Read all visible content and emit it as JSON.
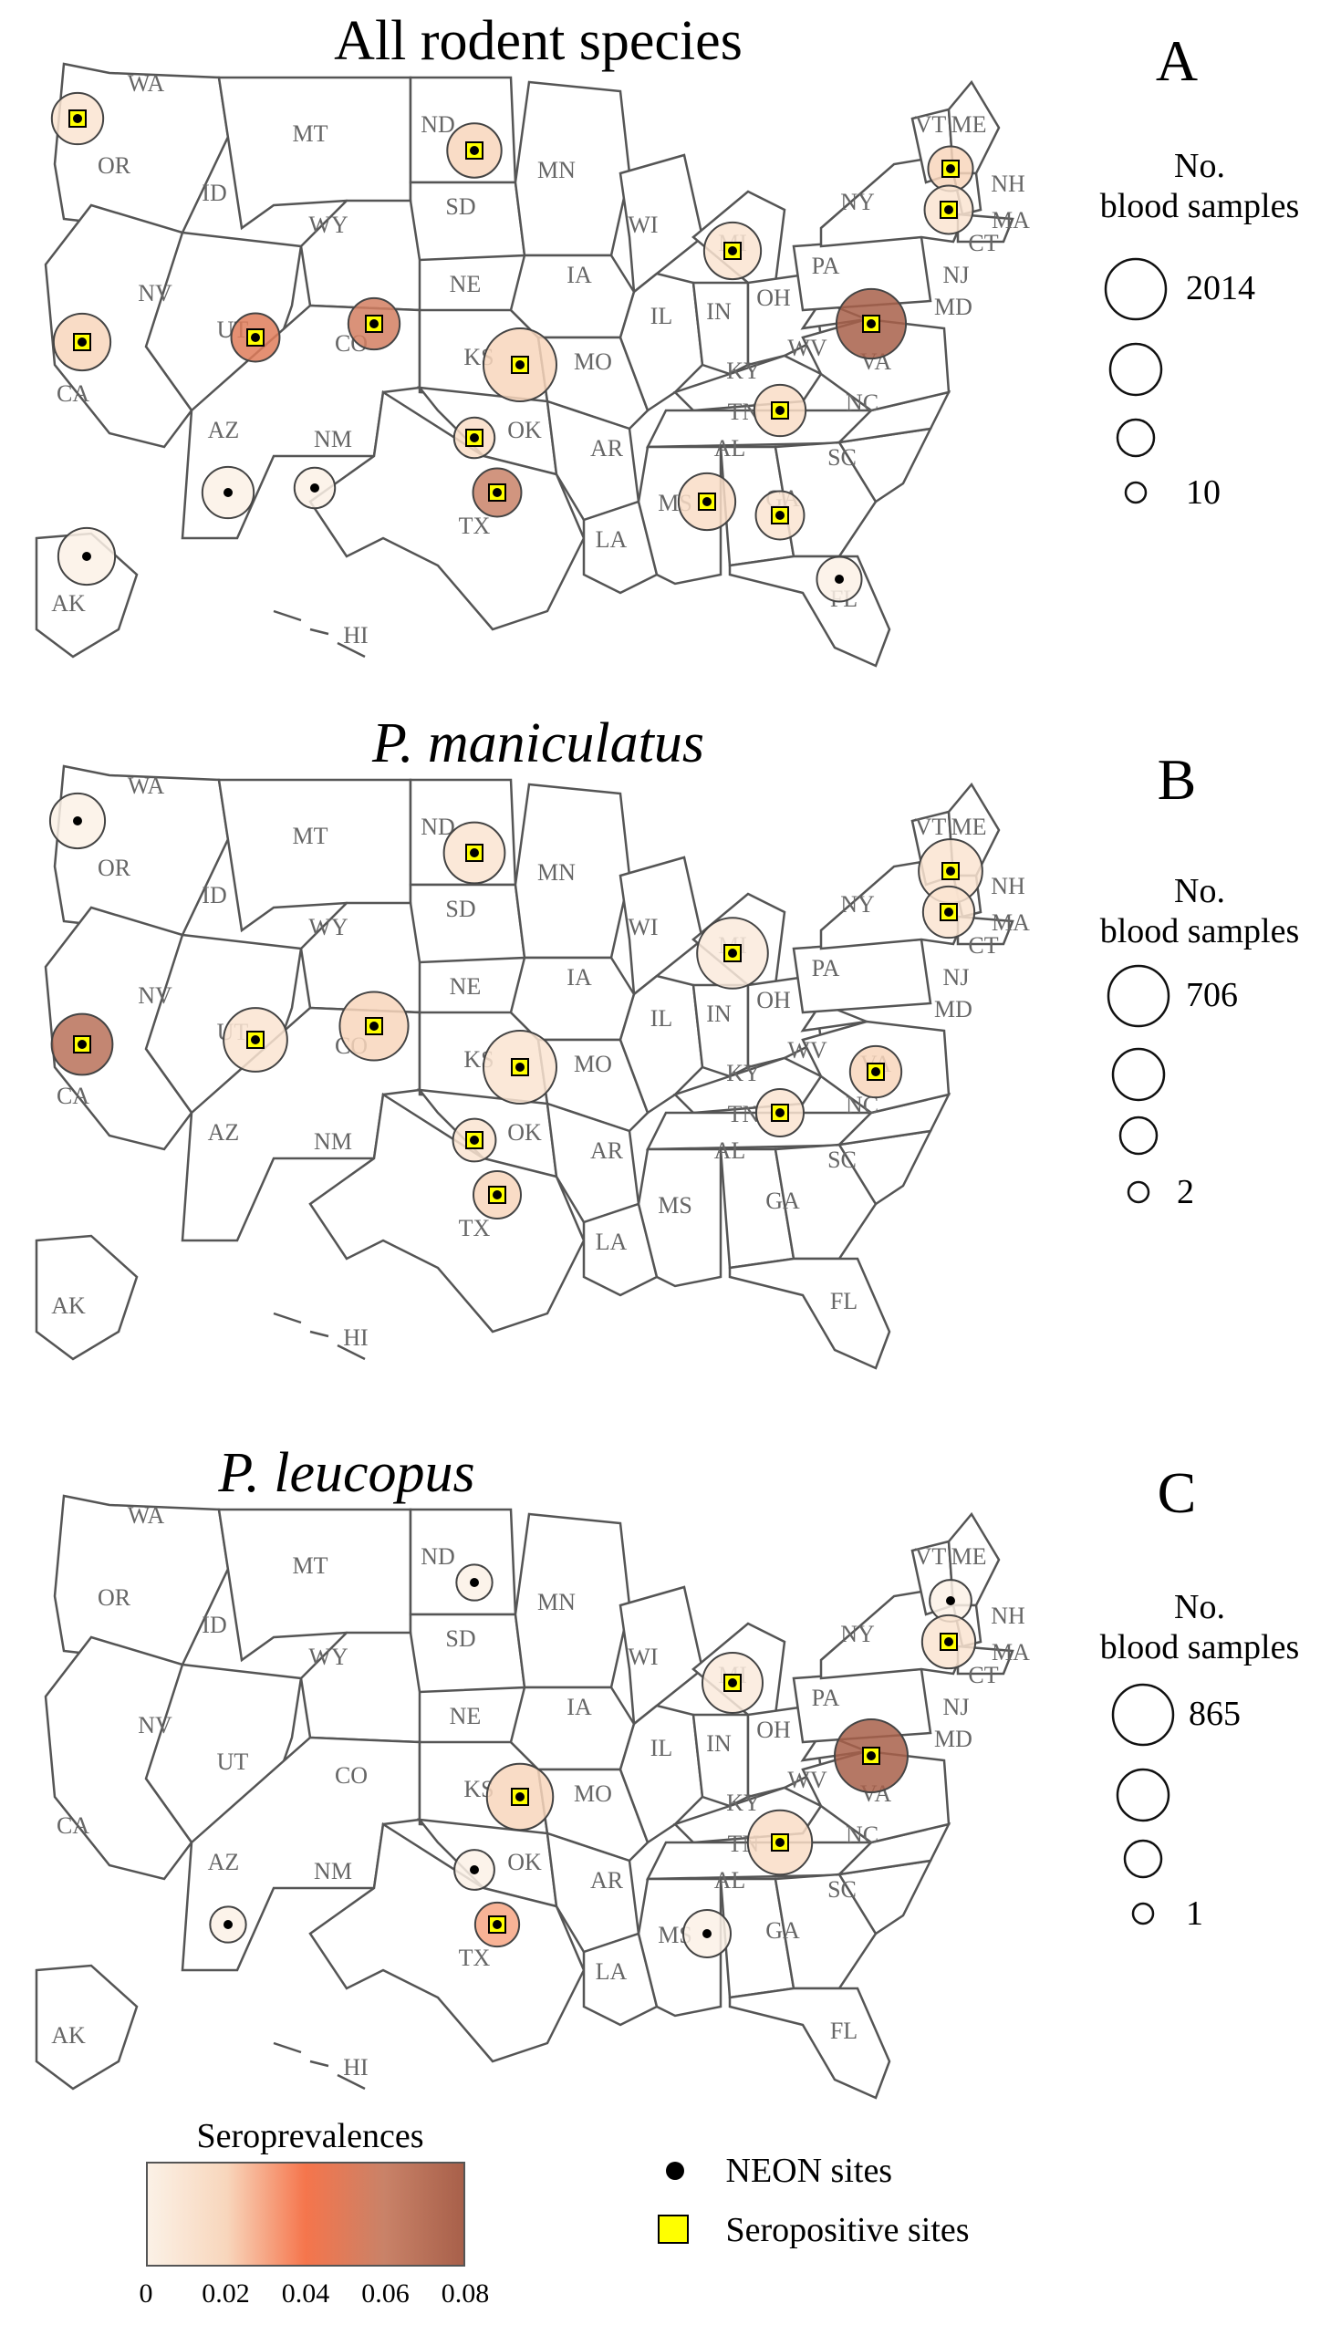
{
  "panels": [
    {
      "id": "A",
      "title": "All rodent species",
      "italic": false,
      "letter": "A",
      "legend_heading_1": "No.",
      "legend_heading_2": "blood samples",
      "legend_max": "2014",
      "legend_min": "10",
      "circles": [
        {
          "state": "WA",
          "samples": 500,
          "prev": 0.01
        },
        {
          "state": "ND",
          "samples": 600,
          "prev": 0.02
        },
        {
          "state": "MI",
          "samples": 700,
          "prev": 0.01
        },
        {
          "state": "ME",
          "samples": 300,
          "prev": 0.02
        },
        {
          "state": "NH",
          "samples": 400,
          "prev": 0.01
        },
        {
          "state": "CA",
          "samples": 700,
          "prev": 0.02
        },
        {
          "state": "UT",
          "samples": 400,
          "prev": 0.05
        },
        {
          "state": "CO",
          "samples": 500,
          "prev": 0.055
        },
        {
          "state": "KS",
          "samples": 1500,
          "prev": 0.02
        },
        {
          "state": "PA",
          "samples": 1300,
          "prev": 0.08
        },
        {
          "state": "TN",
          "samples": 500,
          "prev": 0.015
        },
        {
          "state": "OK",
          "samples": 200,
          "prev": 0.015
        },
        {
          "state": "TX",
          "samples": 400,
          "prev": 0.06
        },
        {
          "state": "AL",
          "samples": 700,
          "prev": 0.015
        },
        {
          "state": "GA",
          "samples": 400,
          "prev": 0.01
        },
        {
          "state": "AZ",
          "samples": 500,
          "prev": 0.0
        },
        {
          "state": "NM",
          "samples": 200,
          "prev": 0.0
        },
        {
          "state": "AK",
          "samples": 700,
          "prev": 0.0
        },
        {
          "state": "FL",
          "samples": 300,
          "prev": 0.0
        }
      ]
    },
    {
      "id": "B",
      "title": "P. maniculatus",
      "italic": true,
      "letter": "B",
      "legend_heading_1": "No.",
      "legend_heading_2": "blood samples",
      "legend_max": "706",
      "legend_min": "2",
      "circles": [
        {
          "state": "WA",
          "samples": 250,
          "prev": 0.0
        },
        {
          "state": "ND",
          "samples": 350,
          "prev": 0.01
        },
        {
          "state": "MI",
          "samples": 550,
          "prev": 0.005
        },
        {
          "state": "ME",
          "samples": 400,
          "prev": 0.01
        },
        {
          "state": "NH",
          "samples": 200,
          "prev": 0.01
        },
        {
          "state": "CA",
          "samples": 350,
          "prev": 0.07
        },
        {
          "state": "UT",
          "samples": 400,
          "prev": 0.01
        },
        {
          "state": "CO",
          "samples": 500,
          "prev": 0.02
        },
        {
          "state": "KS",
          "samples": 600,
          "prev": 0.01
        },
        {
          "state": "VA",
          "samples": 200,
          "prev": 0.02
        },
        {
          "state": "TN",
          "samples": 150,
          "prev": 0.01
        },
        {
          "state": "OK",
          "samples": 100,
          "prev": 0.01
        },
        {
          "state": "TX",
          "samples": 150,
          "prev": 0.02
        }
      ]
    },
    {
      "id": "C",
      "title": "P. leucopus",
      "italic": true,
      "letter": "C",
      "legend_heading_1": "No.",
      "legend_heading_2": "blood samples",
      "legend_max": "865",
      "legend_min": "1",
      "circles": [
        {
          "state": "ND",
          "samples": 60,
          "prev": 0.0
        },
        {
          "state": "MI",
          "samples": 450,
          "prev": 0.005
        },
        {
          "state": "ME",
          "samples": 120,
          "prev": 0.0
        },
        {
          "state": "NH",
          "samples": 300,
          "prev": 0.01
        },
        {
          "state": "KS",
          "samples": 600,
          "prev": 0.02
        },
        {
          "state": "PA",
          "samples": 800,
          "prev": 0.08
        },
        {
          "state": "TN",
          "samples": 550,
          "prev": 0.015
        },
        {
          "state": "OK",
          "samples": 100,
          "prev": 0.0
        },
        {
          "state": "TX",
          "samples": 150,
          "prev": 0.03
        },
        {
          "state": "AL",
          "samples": 200,
          "prev": 0.0
        },
        {
          "state": "AZ",
          "samples": 60,
          "prev": 0.0
        }
      ]
    }
  ],
  "state_labels": [
    "WA",
    "OR",
    "CA",
    "NV",
    "ID",
    "MT",
    "WY",
    "UT",
    "AZ",
    "NM",
    "CO",
    "ND",
    "SD",
    "NE",
    "KS",
    "OK",
    "TX",
    "MN",
    "IA",
    "MO",
    "AR",
    "LA",
    "WI",
    "IL",
    "MI",
    "IN",
    "OH",
    "KY",
    "TN",
    "MS",
    "AL",
    "GA",
    "FL",
    "SC",
    "NC",
    "VA",
    "WV",
    "PA",
    "NY",
    "VT",
    "ME",
    "NH",
    "MA",
    "CT",
    "NJ",
    "MD",
    "AK",
    "HI"
  ],
  "seroprevalence_legend": {
    "title": "Seroprevalences",
    "ticks": [
      "0",
      "0.02",
      "0.04",
      "0.06",
      "0.08"
    ],
    "colors": [
      "#fbf1e6",
      "#f8d6bc",
      "#f5754c",
      "#c98268",
      "#a8604a"
    ]
  },
  "key": {
    "neon": "NEON sites",
    "seropositive": "Seropositive sites"
  }
}
